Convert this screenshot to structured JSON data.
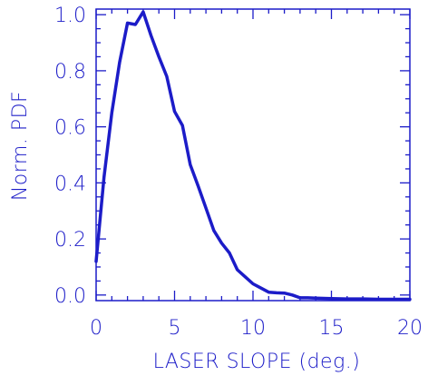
{
  "chart_data": {
    "type": "line",
    "title": "",
    "xlabel": "LASER SLOPE (deg.)",
    "ylabel": "Norm. PDF",
    "xlim": [
      0,
      20
    ],
    "ylim": [
      -0.02,
      1.02
    ],
    "xticks": [
      0,
      5,
      10,
      15,
      20
    ],
    "xtick_labels": [
      "0",
      "5",
      "10",
      "15",
      "20"
    ],
    "yticks": [
      0.0,
      0.2,
      0.4,
      0.6,
      0.8,
      1.0
    ],
    "ytick_labels": [
      "0.0",
      "0.2",
      "0.4",
      "0.6",
      "0.8",
      "1.0"
    ],
    "x_minor_step": 1,
    "y_minor_step": 0.05,
    "grid": false,
    "legend": "none",
    "color": "#1c1cc8",
    "series": [
      {
        "x": [
          0,
          0.5,
          1,
          1.5,
          2,
          2.5,
          3,
          3.5,
          4,
          4.5,
          5,
          5.5,
          6,
          6.5,
          7,
          7.5,
          8,
          8.5,
          9,
          9.5,
          10,
          10.5,
          11,
          11.5,
          12,
          12.5,
          13,
          13.5,
          14,
          15,
          16,
          17,
          18,
          19,
          20
        ],
        "y": [
          0.12,
          0.42,
          0.65,
          0.83,
          0.97,
          0.965,
          1.01,
          0.925,
          0.85,
          0.78,
          0.655,
          0.605,
          0.465,
          0.39,
          0.31,
          0.23,
          0.185,
          0.15,
          0.09,
          0.065,
          0.04,
          0.025,
          0.01,
          0.008,
          0.007,
          0.0,
          -0.01,
          -0.01,
          -0.011,
          -0.013,
          -0.014,
          -0.014,
          -0.015,
          -0.015,
          -0.015
        ]
      }
    ]
  }
}
